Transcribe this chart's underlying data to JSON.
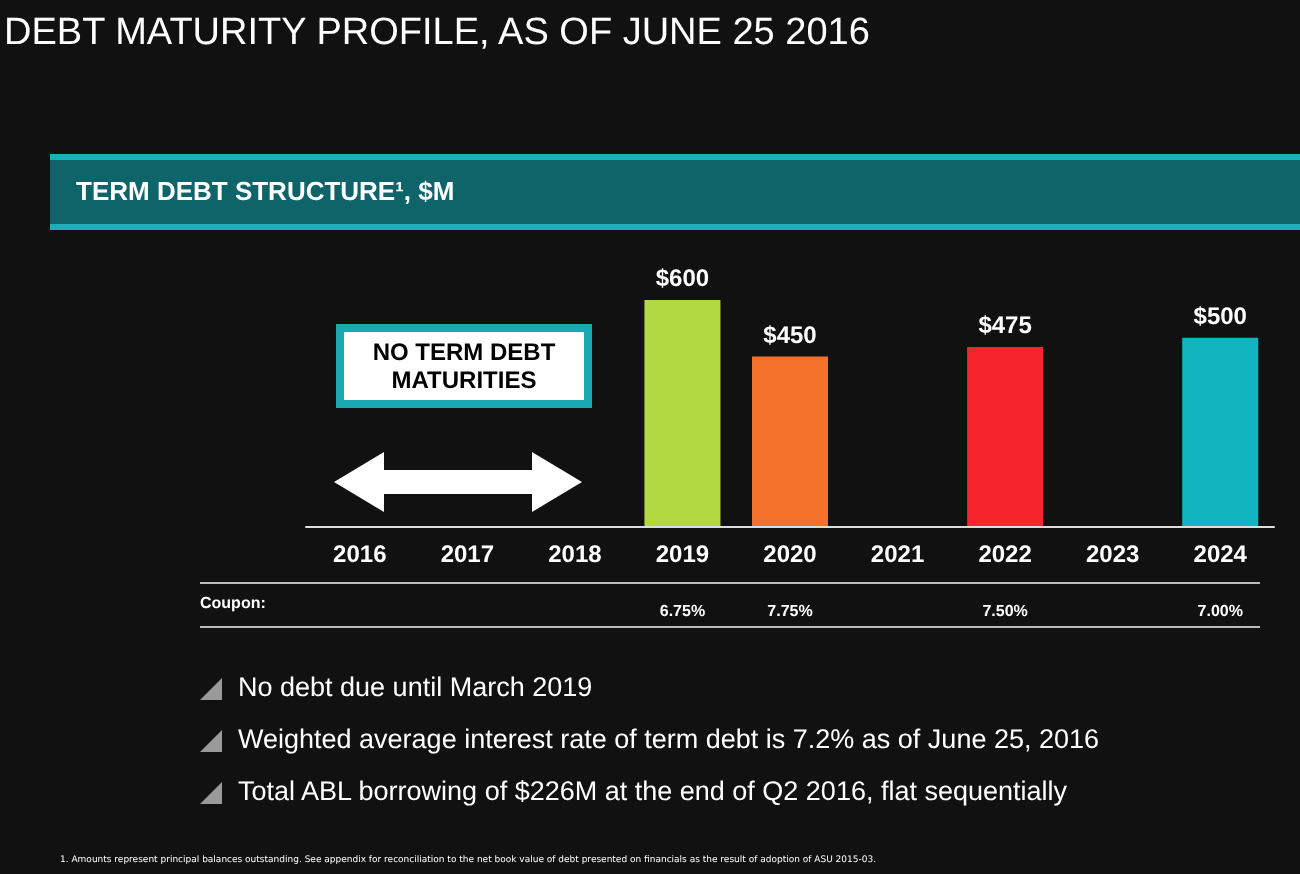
{
  "chart_data": {
    "type": "bar",
    "title": "DEBT MATURITY PROFILE, AS OF JUNE 25 2016",
    "subtitle": "TERM DEBT STRUCTURE¹, $M",
    "categories": [
      "2016",
      "2017",
      "2018",
      "2019",
      "2020",
      "2021",
      "2022",
      "2023",
      "2024"
    ],
    "values": [
      null,
      null,
      null,
      600,
      450,
      null,
      475,
      null,
      500
    ],
    "colors": [
      "#888888",
      "#888888",
      "#888888",
      "#b2d942",
      "#f2712b",
      "#888888",
      "#f5242d",
      "#888888",
      "#10b4bf"
    ],
    "value_labels": [
      null,
      null,
      null,
      "$600",
      "$450",
      null,
      "$475",
      null,
      "$500"
    ],
    "annotations": [
      "NO TERM DEBT MATURITIES",
      "Coupon:",
      "6.75%",
      "7.75%",
      "7.50%",
      "7.00%",
      "No debt due until March 2019",
      "Weighted average interest rate of term debt is 7.2% as of June 25, 2016",
      "Total ABL borrowing of $226M at the end of Q2 2016, flat sequentially",
      "1. Amounts represent principal balances outstanding. See appendix for reconciliation to the net book value of debt presented on financials as the result of adoption of ASU 2015-03."
    ]
  }
}
